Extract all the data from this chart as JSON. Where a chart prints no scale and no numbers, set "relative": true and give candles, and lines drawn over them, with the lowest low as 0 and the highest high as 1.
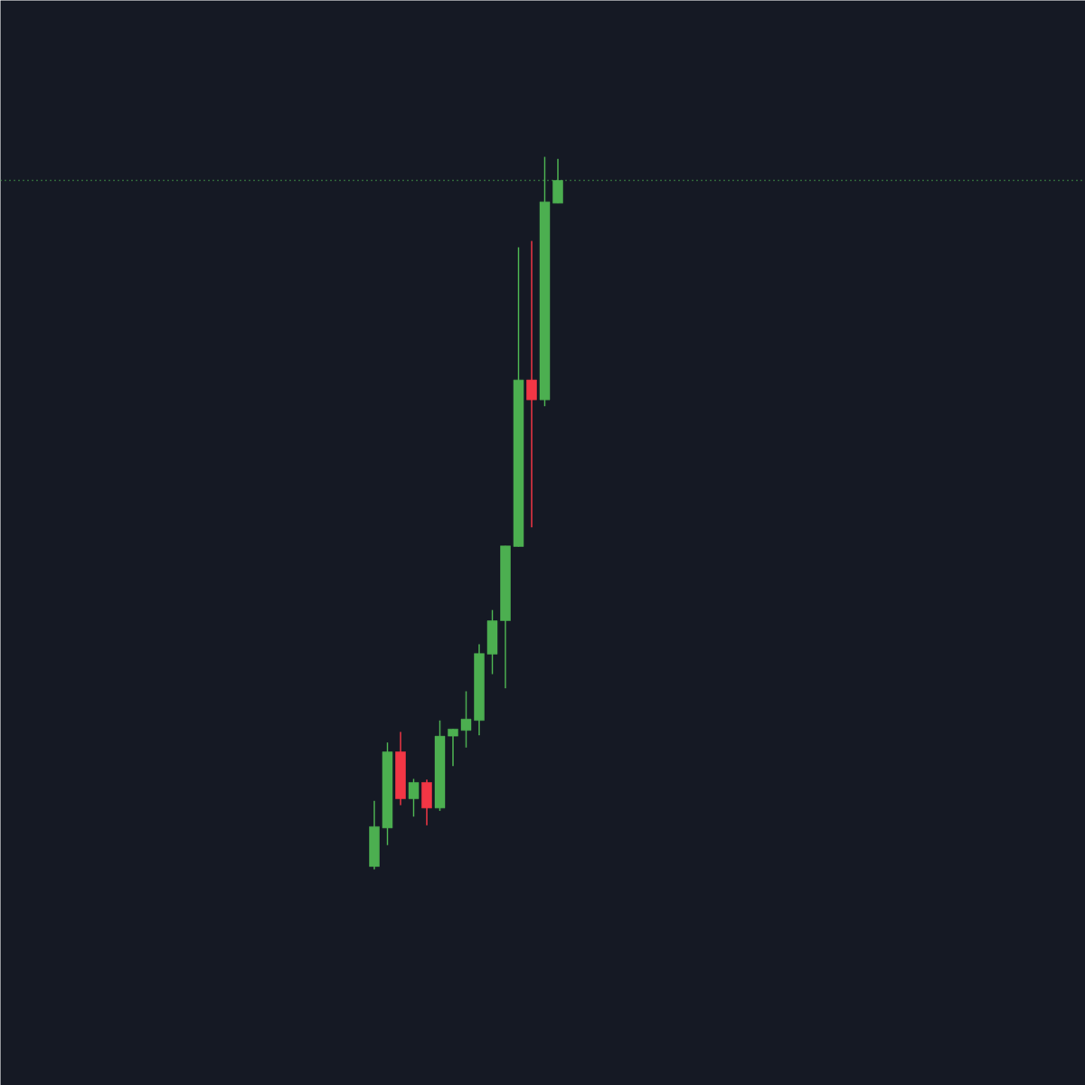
{
  "chart_data": {
    "type": "candlestick",
    "relative": true,
    "tick_labels": false,
    "categories": [
      null,
      null,
      null,
      null,
      null,
      null,
      null,
      null,
      null,
      null,
      null,
      null,
      null,
      null,
      null
    ],
    "ohlc": [
      [
        0.004,
        0.096,
        0.0,
        0.06
      ],
      [
        0.058,
        0.178,
        0.034,
        0.165
      ],
      [
        0.165,
        0.193,
        0.09,
        0.099
      ],
      [
        0.099,
        0.127,
        0.074,
        0.122
      ],
      [
        0.122,
        0.126,
        0.062,
        0.086
      ],
      [
        0.086,
        0.209,
        0.082,
        0.187
      ],
      [
        0.187,
        0.197,
        0.145,
        0.197
      ],
      [
        0.195,
        0.25,
        0.171,
        0.211
      ],
      [
        0.209,
        0.316,
        0.188,
        0.303
      ],
      [
        0.302,
        0.364,
        0.274,
        0.349
      ],
      [
        0.349,
        0.454,
        0.254,
        0.454
      ],
      [
        0.453,
        0.873,
        0.453,
        0.687
      ],
      [
        0.687,
        0.882,
        0.48,
        0.659
      ],
      [
        0.659,
        1.0,
        0.65,
        0.937
      ],
      [
        0.935,
        0.997,
        0.935,
        0.967
      ]
    ],
    "colors": [
      "#4caf50",
      "#4caf50",
      "#f23645",
      "#4caf50",
      "#f23645",
      "#4caf50",
      "#4caf50",
      "#4caf50",
      "#4caf50",
      "#4caf50",
      "#4caf50",
      "#4caf50",
      "#f23645",
      "#4caf50",
      "#4caf50"
    ],
    "ref_lines": [
      {
        "axis": "y",
        "value": 0.967,
        "color": "#4caf50",
        "line_style": "dotted"
      }
    ]
  }
}
